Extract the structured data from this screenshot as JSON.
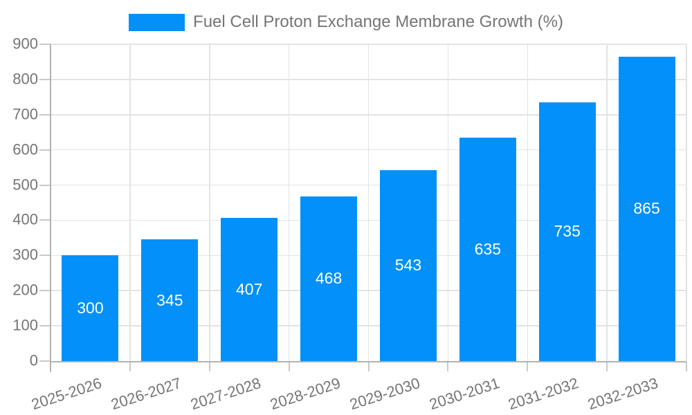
{
  "chart_data": {
    "type": "bar",
    "title": "Fuel Cell Proton Exchange Membrane Growth (%)",
    "categories": [
      "2025-2026",
      "2026-2027",
      "2027-2028",
      "2028-2029",
      "2029-2030",
      "2030-2031",
      "2031-2032",
      "2032-2033"
    ],
    "values": [
      300,
      345,
      407,
      468,
      543,
      635,
      735,
      865
    ],
    "bar_labels": [
      "300",
      "345",
      "407",
      "468",
      "543",
      "635",
      "735",
      "865"
    ],
    "ylim": [
      0,
      900
    ],
    "ytick_step": 100,
    "ytick_labels": [
      "0",
      "100",
      "200",
      "300",
      "400",
      "500",
      "600",
      "700",
      "800",
      "900"
    ],
    "grid": true,
    "legend_position": "top",
    "x_label_rotation_deg": -18,
    "colors": {
      "bar": "#0390f8",
      "value_label_text": "#ffffff",
      "axis_text": "#757575",
      "grid_line": "#e3e3e3",
      "axis_line": "#b2b2b2",
      "tick_mark": "#c9c9c9",
      "background": "#ffffff"
    }
  }
}
